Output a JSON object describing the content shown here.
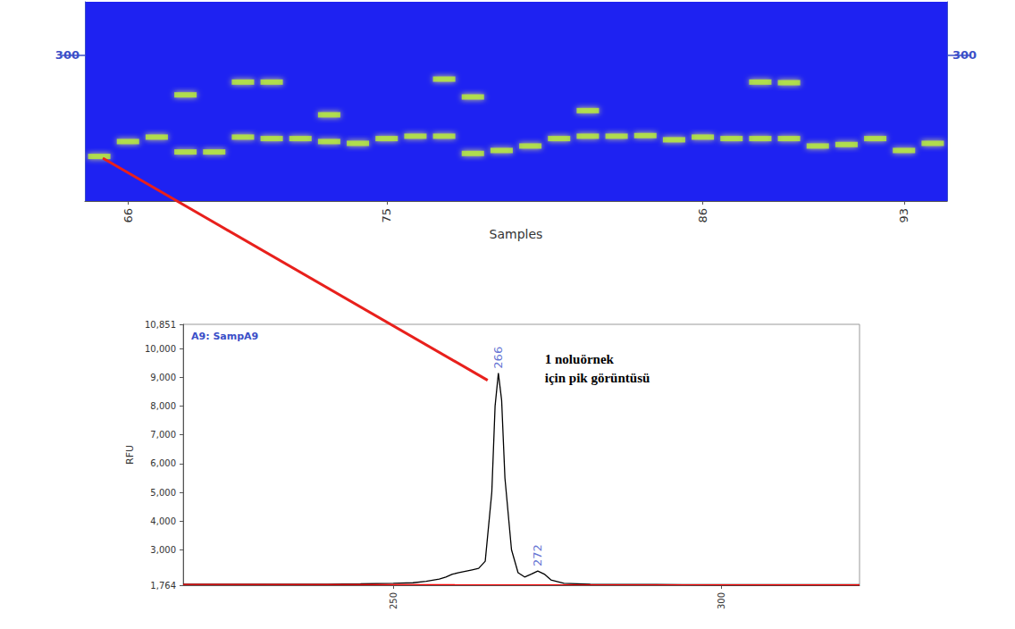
{
  "chart_data": [
    {
      "type": "scatter",
      "marker": "rect",
      "color": "#b8f032",
      "x_label": "Samples",
      "x": [
        65,
        66,
        67,
        68,
        68,
        69,
        70,
        70,
        71,
        71,
        72,
        73,
        73,
        74,
        75,
        76,
        77,
        77,
        78,
        78,
        79,
        80,
        81,
        82,
        82,
        83,
        84,
        85,
        86,
        87,
        88,
        88,
        89,
        89,
        90,
        91,
        92,
        93,
        94
      ],
      "values": [
        266,
        271,
        272.5,
        286.7,
        267.5,
        267.5,
        291,
        272.5,
        291,
        272,
        272,
        280,
        271,
        270.4,
        272,
        272.8,
        292,
        272.8,
        286,
        267,
        268,
        269.5,
        272,
        281.4,
        272.8,
        272.8,
        273,
        271.6,
        272.5,
        272,
        291,
        272,
        290.8,
        272,
        269.5,
        270,
        272,
        268,
        270.4
      ],
      "xlim": [
        64.5,
        94.5
      ],
      "xticks": [
        66,
        75,
        86,
        93
      ],
      "ylim": [
        251,
        318
      ],
      "yticks": [
        300
      ],
      "grid": false
    },
    {
      "type": "line",
      "title": "A9: SampA9",
      "y_label": "RFU",
      "annotation": "1 noluörnek\niçin pik görüntüsü",
      "series": [
        {
          "color": "#000000",
          "x": [
            218,
            230,
            240,
            245,
            250,
            253,
            255,
            257,
            258,
            259,
            260,
            261,
            262,
            263,
            264,
            265,
            265.5,
            266,
            266.5,
            267,
            268,
            269,
            270,
            271,
            272,
            273,
            274,
            276,
            280,
            290,
            300,
            310,
            321
          ],
          "values": [
            1800,
            1800,
            1800,
            1810,
            1830,
            1850,
            1900,
            1980,
            2050,
            2150,
            2200,
            2250,
            2300,
            2350,
            2600,
            5000,
            8000,
            9150,
            8200,
            5500,
            3000,
            2200,
            2050,
            2150,
            2260,
            2150,
            1950,
            1830,
            1800,
            1790,
            1780,
            1780,
            1780
          ]
        },
        {
          "color": "#ff0000",
          "x": [
            218,
            321
          ],
          "values": [
            1790,
            1780
          ]
        }
      ],
      "peaks": {
        "x": [
          266,
          272
        ],
        "values": [
          9150,
          2260
        ]
      },
      "xlim": [
        218,
        321
      ],
      "xticks": [
        250,
        300
      ],
      "ylim": [
        1764,
        10851
      ],
      "yticks": [
        1764,
        3000,
        4000,
        5000,
        6000,
        7000,
        8000,
        9000,
        10000,
        10851
      ],
      "grid": false
    }
  ]
}
